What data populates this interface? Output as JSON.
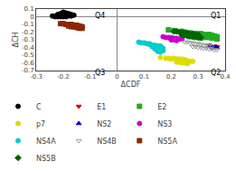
{
  "chart_data": {
    "type": "scatter",
    "x_label": "ΔCDF",
    "y_label": "ΔCH",
    "xlim": [
      -0.3,
      0.4
    ],
    "ylim": [
      -0.7,
      0.1
    ],
    "xticks": [
      -0.3,
      -0.2,
      -0.1,
      0,
      0.1,
      0.2,
      0.3,
      0.4
    ],
    "yticks": [
      -0.7,
      -0.6,
      -0.5,
      -0.4,
      -0.3,
      -0.2,
      -0.1,
      0,
      0.1
    ],
    "grid": false,
    "legend": "bottom",
    "annotations": [
      {
        "text": "Q4",
        "x": -0.04,
        "y": 0.087
      },
      {
        "text": "Q1",
        "x": 0.39,
        "y": 0.087
      },
      {
        "text": "Q3",
        "x": -0.04,
        "y": -0.655
      },
      {
        "text": "Q2",
        "x": 0.39,
        "y": -0.655
      }
    ],
    "series": [
      {
        "name": "C",
        "color": "#000000",
        "marker": "circle",
        "x": [
          -0.24,
          -0.23,
          -0.23,
          -0.22,
          -0.22,
          -0.22,
          -0.22,
          -0.21,
          -0.21,
          -0.21,
          -0.21,
          -0.21,
          -0.2,
          -0.2,
          -0.2,
          -0.2,
          -0.2,
          -0.2,
          -0.2,
          -0.19,
          -0.19,
          -0.19,
          -0.19,
          -0.19,
          -0.19,
          -0.18,
          -0.18,
          -0.18,
          -0.18,
          -0.17,
          -0.17,
          -0.17,
          -0.16
        ],
        "y": [
          0.01,
          0.0,
          0.01,
          0.0,
          0.01,
          0.02,
          0.03,
          0.0,
          0.01,
          0.02,
          0.03,
          0.04,
          0.0,
          0.01,
          0.02,
          0.03,
          0.04,
          0.05,
          0.06,
          0.0,
          0.01,
          0.02,
          0.03,
          0.04,
          0.05,
          0.01,
          0.02,
          0.03,
          0.04,
          0.01,
          0.02,
          0.03,
          0.02
        ]
      },
      {
        "name": "E1",
        "color": "#cc0000",
        "marker": "triangle-down",
        "x": [
          0.34,
          0.35,
          0.36,
          0.35,
          0.36,
          0.37
        ],
        "y": [
          -0.37,
          -0.38,
          -0.38,
          -0.4,
          -0.4,
          -0.39
        ]
      },
      {
        "name": "E2",
        "color": "#22aa22",
        "marker": "square",
        "x": [
          0.19,
          0.21,
          0.22,
          0.24,
          0.25,
          0.27,
          0.28,
          0.29,
          0.3,
          0.31,
          0.32,
          0.33,
          0.34,
          0.35,
          0.36,
          0.37,
          0.27,
          0.29,
          0.31,
          0.33,
          0.35,
          0.37
        ],
        "y": [
          -0.17,
          -0.18,
          -0.19,
          -0.19,
          -0.2,
          -0.21,
          -0.22,
          -0.22,
          -0.23,
          -0.22,
          -0.23,
          -0.24,
          -0.23,
          -0.24,
          -0.25,
          -0.26,
          -0.26,
          -0.27,
          -0.28,
          -0.27,
          -0.28,
          -0.29
        ]
      },
      {
        "name": "p7",
        "color": "#dddd00",
        "marker": "circle",
        "x": [
          0.16,
          0.18,
          0.19,
          0.2,
          0.21,
          0.22,
          0.22,
          0.23,
          0.23,
          0.24,
          0.24,
          0.25,
          0.25,
          0.26,
          0.27,
          0.28,
          0.22,
          0.23,
          0.24,
          0.25,
          0.26
        ],
        "y": [
          -0.53,
          -0.54,
          -0.54,
          -0.55,
          -0.54,
          -0.55,
          -0.56,
          -0.55,
          -0.56,
          -0.55,
          -0.57,
          -0.56,
          -0.57,
          -0.57,
          -0.58,
          -0.58,
          -0.59,
          -0.59,
          -0.6,
          -0.6,
          -0.61
        ]
      },
      {
        "name": "NS2",
        "color": "#0000cc",
        "marker": "triangle-up",
        "x": [
          0.34,
          0.35,
          0.36,
          0.37
        ],
        "y": [
          -0.38,
          -0.39,
          -0.39,
          -0.4
        ]
      },
      {
        "name": "NS3",
        "color": "#cc00cc",
        "marker": "circle",
        "x": [
          0.17,
          0.18,
          0.19,
          0.2,
          0.21,
          0.22,
          0.23,
          0.24,
          0.2,
          0.21,
          0.22
        ],
        "y": [
          -0.26,
          -0.27,
          -0.27,
          -0.27,
          -0.28,
          -0.28,
          -0.29,
          -0.29,
          -0.3,
          -0.3,
          -0.31
        ]
      },
      {
        "name": "NS4A",
        "color": "#00cccc",
        "marker": "circle",
        "x": [
          0.08,
          0.09,
          0.1,
          0.11,
          0.12,
          0.12,
          0.13,
          0.14,
          0.15,
          0.16,
          0.13,
          0.14,
          0.15,
          0.16,
          0.17,
          0.14,
          0.15,
          0.16,
          0.17,
          0.15,
          0.16
        ],
        "y": [
          -0.33,
          -0.34,
          -0.34,
          -0.35,
          -0.35,
          -0.36,
          -0.37,
          -0.37,
          -0.38,
          -0.38,
          -0.39,
          -0.4,
          -0.4,
          -0.41,
          -0.41,
          -0.42,
          -0.43,
          -0.43,
          -0.44,
          -0.45,
          -0.46
        ]
      },
      {
        "name": "NS4B",
        "color": "#999999",
        "marker": "triangle-down-open",
        "x": [
          0.25,
          0.26,
          0.27,
          0.28,
          0.29,
          0.3,
          0.31,
          0.32,
          0.33,
          0.34,
          0.35,
          0.28,
          0.29,
          0.3,
          0.31,
          0.32,
          0.33,
          0.34,
          0.35,
          0.36,
          0.37
        ],
        "y": [
          -0.33,
          -0.33,
          -0.34,
          -0.34,
          -0.35,
          -0.35,
          -0.36,
          -0.37,
          -0.37,
          -0.38,
          -0.38,
          -0.39,
          -0.39,
          -0.4,
          -0.4,
          -0.41,
          -0.41,
          -0.42,
          -0.42,
          -0.43,
          -0.43
        ]
      },
      {
        "name": "NS5A",
        "color": "#8b2800",
        "marker": "square",
        "x": [
          -0.21,
          -0.2,
          -0.19,
          -0.18,
          -0.17,
          -0.16,
          -0.15,
          -0.14,
          -0.18,
          -0.17,
          -0.16,
          -0.15,
          -0.14,
          -0.13,
          -0.15,
          -0.14,
          -0.13
        ],
        "y": [
          -0.09,
          -0.09,
          -0.1,
          -0.1,
          -0.1,
          -0.11,
          -0.11,
          -0.12,
          -0.12,
          -0.13,
          -0.13,
          -0.13,
          -0.14,
          -0.13,
          -0.14,
          -0.15,
          -0.15
        ]
      },
      {
        "name": "NS5B",
        "color": "#006400",
        "marker": "diamond",
        "x": [
          0.21,
          0.22,
          0.23,
          0.24,
          0.25,
          0.26,
          0.27,
          0.28,
          0.29,
          0.3,
          0.24,
          0.25,
          0.26,
          0.27,
          0.28,
          0.29,
          0.3,
          0.31
        ],
        "y": [
          -0.19,
          -0.19,
          -0.2,
          -0.2,
          -0.21,
          -0.21,
          -0.22,
          -0.22,
          -0.23,
          -0.23,
          -0.24,
          -0.24,
          -0.25,
          -0.25,
          -0.26,
          -0.26,
          -0.27,
          -0.27
        ]
      }
    ]
  }
}
